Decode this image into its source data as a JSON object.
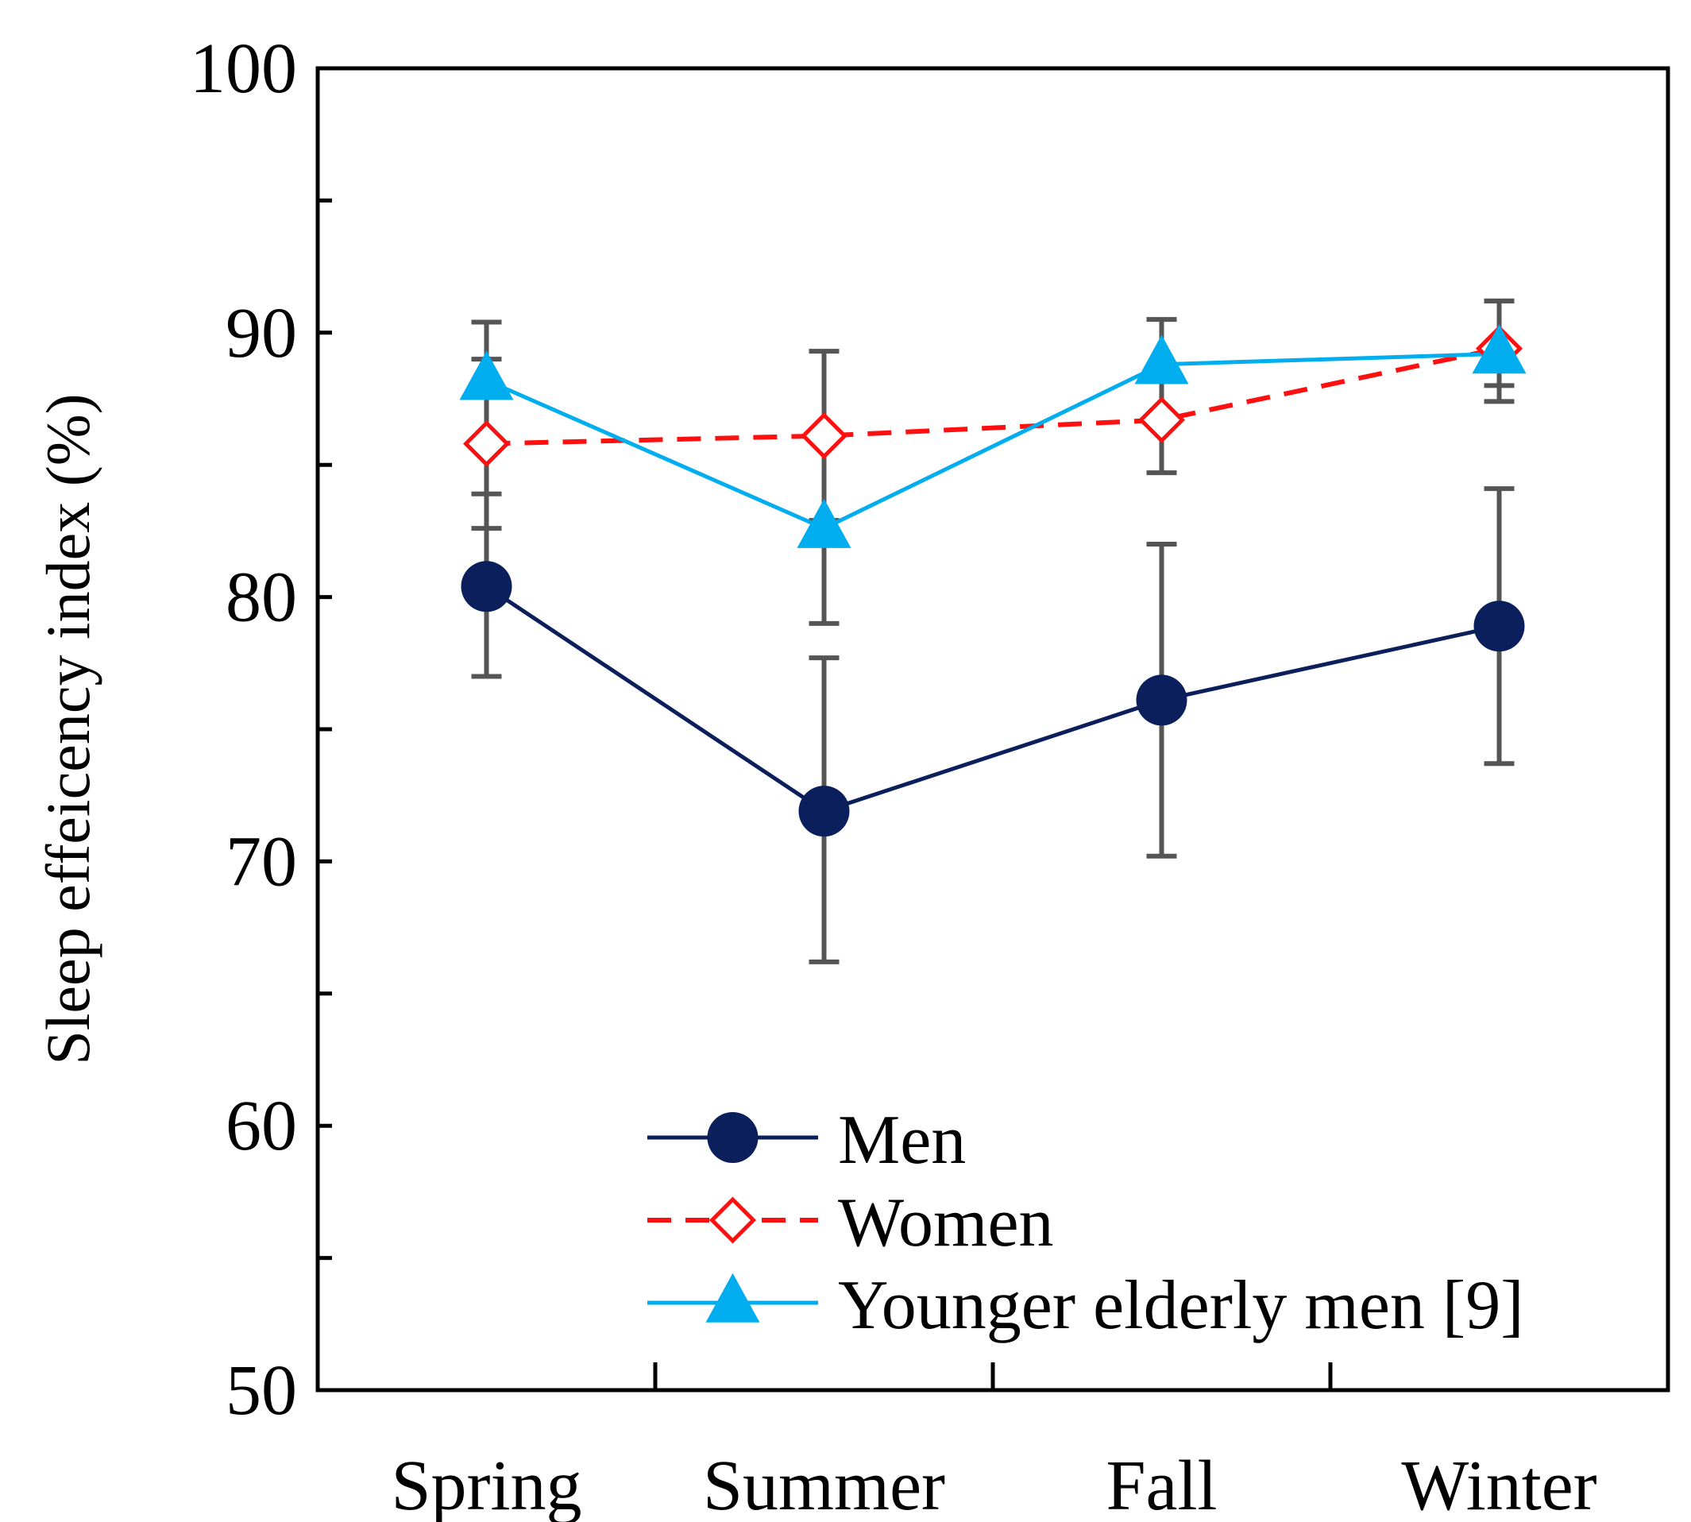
{
  "chart_data": {
    "type": "line",
    "title": "",
    "xlabel": "",
    "ylabel": "Sleep effeicency index (%)",
    "ylim": [
      50,
      100
    ],
    "yticks": [
      50,
      60,
      70,
      80,
      90,
      100
    ],
    "categories": [
      "Spring",
      "Summer",
      "Fall",
      "Winter"
    ],
    "legend_position": "bottom-right",
    "series": [
      {
        "name": "Men",
        "marker": "circle",
        "line": "solid",
        "color": "#0b1f5c",
        "values": [
          80.4,
          71.9,
          76.1,
          78.9
        ],
        "error_low": [
          77.0,
          66.2,
          70.2,
          73.7
        ],
        "error_high": [
          83.9,
          77.7,
          82.0,
          84.1
        ]
      },
      {
        "name": "Women",
        "marker": "diamond",
        "line": "dashed",
        "color": "#ff1010",
        "values": [
          85.8,
          86.1,
          86.7,
          89.4
        ],
        "error_low": [
          82.6,
          82.9,
          84.7,
          87.4
        ],
        "error_high": [
          89.0,
          89.3,
          88.7,
          91.2
        ]
      },
      {
        "name": "Younger elderly men [9]",
        "marker": "triangle",
        "line": "solid",
        "color": "#00aeef",
        "values": [
          88.2,
          82.6,
          88.8,
          89.2
        ],
        "error_low": [
          null,
          79.0,
          null,
          88.0
        ],
        "error_high": [
          90.4,
          null,
          90.5,
          91.2
        ]
      }
    ]
  }
}
